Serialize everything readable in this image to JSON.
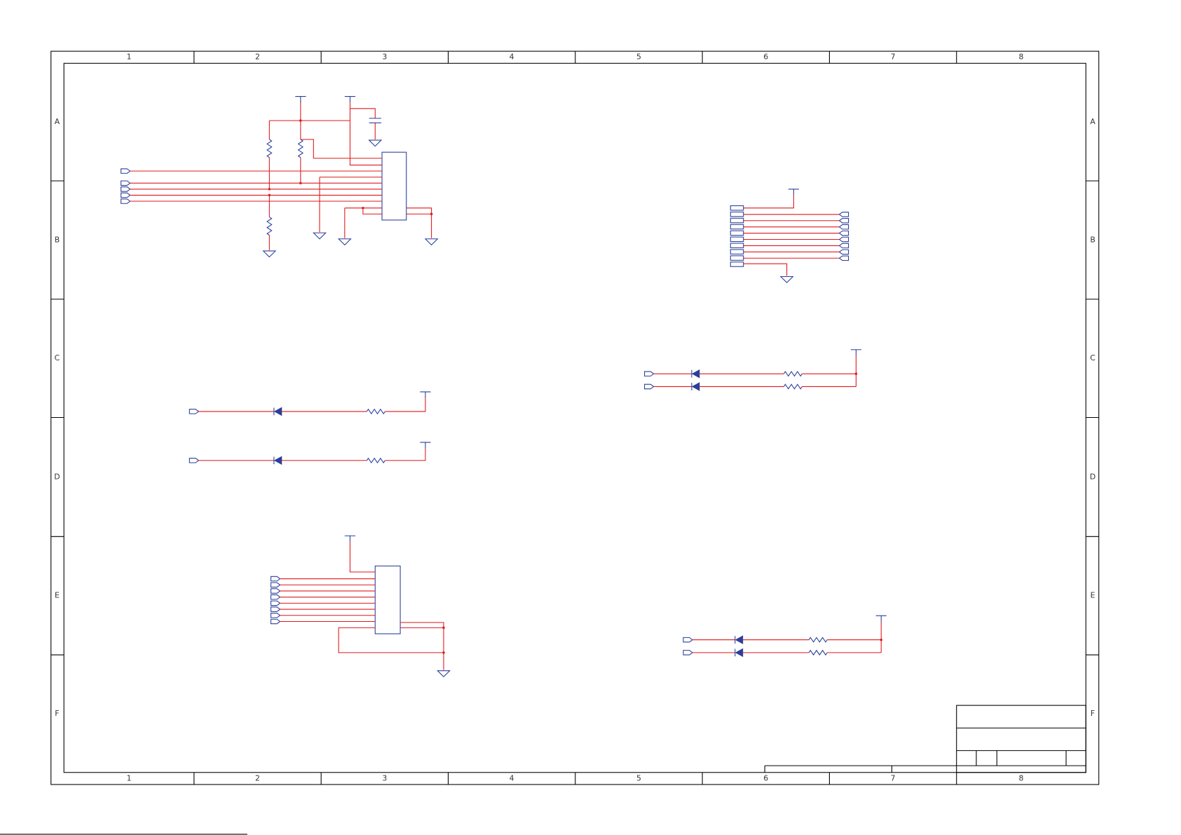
{
  "frame": {
    "columns": [
      "1",
      "2",
      "3",
      "4",
      "5",
      "6",
      "7",
      "8"
    ],
    "rows": [
      "A",
      "B",
      "C",
      "D",
      "E",
      "F"
    ]
  }
}
